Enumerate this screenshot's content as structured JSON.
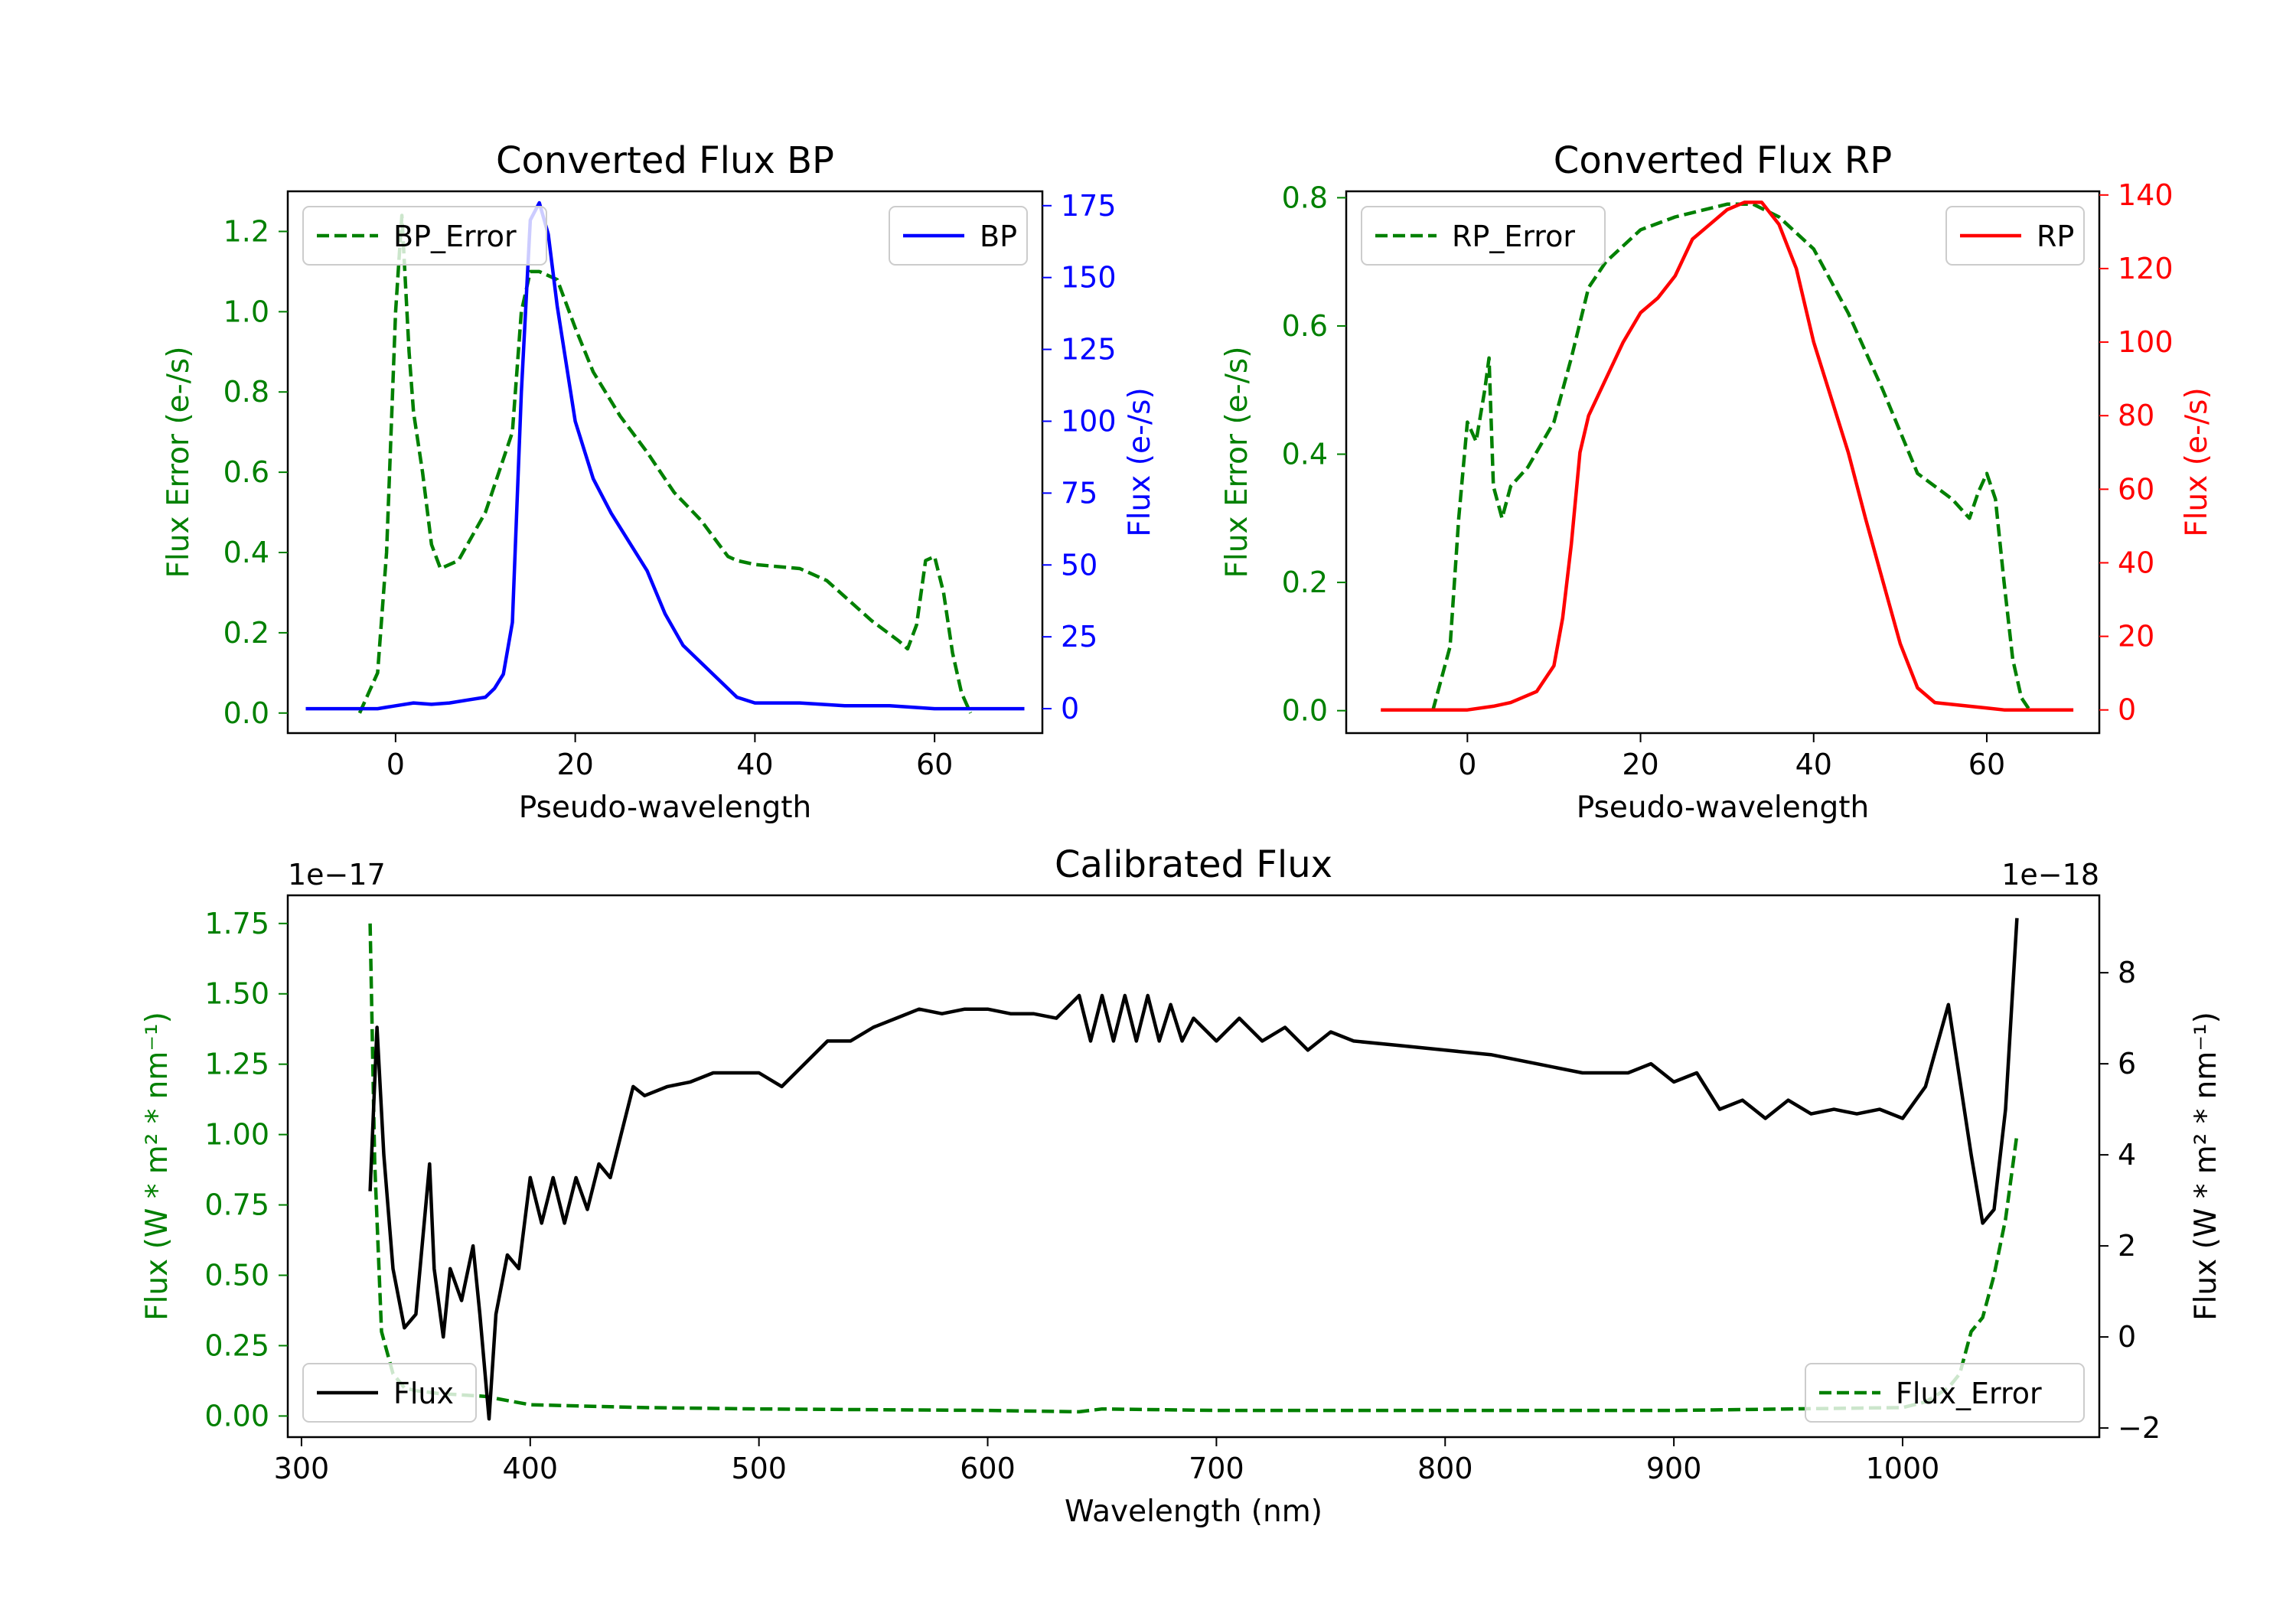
{
  "chart_data": [
    {
      "id": "bp",
      "type": "line",
      "title": "Converted Flux BP",
      "xlabel": "Pseudo-wavelength",
      "ylabel_left": "Flux Error (e-/s)",
      "ylabel_right": "Flux (e-/s)",
      "xlim": [
        -12,
        72
      ],
      "ylim_left": [
        -0.05,
        1.3
      ],
      "ylim_right": [
        -8.5,
        180
      ],
      "x_ticks": [
        0,
        20,
        40,
        60
      ],
      "y_ticks_left": [
        "0.0",
        "0.2",
        "0.4",
        "0.6",
        "0.8",
        "1.0",
        "1.2"
      ],
      "y_ticks_right": [
        "0",
        "25",
        "50",
        "75",
        "100",
        "125",
        "150",
        "175"
      ],
      "series": [
        {
          "name": "BP_Error",
          "axis": "left",
          "color": "#008000",
          "style": "dashed",
          "x": [
            -4,
            -2,
            -1,
            0,
            0.7,
            1.5,
            2,
            3,
            4,
            5,
            7,
            10,
            13,
            14,
            15,
            16,
            18,
            20,
            22,
            25,
            28,
            31,
            34,
            36,
            37,
            38,
            40,
            45,
            48,
            50,
            53,
            56,
            57,
            58,
            59,
            60,
            61,
            62,
            63,
            64
          ],
          "y": [
            0.0,
            0.1,
            0.4,
            1.0,
            1.24,
            0.9,
            0.75,
            0.6,
            0.42,
            0.36,
            0.38,
            0.5,
            0.7,
            1.0,
            1.1,
            1.1,
            1.08,
            0.96,
            0.85,
            0.74,
            0.65,
            0.55,
            0.48,
            0.42,
            0.39,
            0.38,
            0.37,
            0.36,
            0.33,
            0.29,
            0.23,
            0.18,
            0.16,
            0.22,
            0.38,
            0.39,
            0.3,
            0.15,
            0.05,
            0.0
          ]
        },
        {
          "name": "BP",
          "axis": "right",
          "color": "#0000ff",
          "style": "solid",
          "x": [
            -10,
            -5,
            -2,
            0,
            2,
            4,
            6,
            8,
            10,
            11,
            12,
            13,
            14,
            15,
            16,
            17,
            18,
            20,
            22,
            24,
            26,
            28,
            30,
            32,
            34,
            36,
            38,
            40,
            45,
            50,
            55,
            60,
            65,
            70
          ],
          "y": [
            0,
            0,
            0,
            1,
            2,
            1.5,
            2,
            3,
            4,
            7,
            12,
            30,
            110,
            170,
            176,
            165,
            140,
            100,
            80,
            68,
            58,
            48,
            33,
            22,
            16,
            10,
            4,
            2,
            2,
            1,
            1,
            0,
            0,
            0
          ]
        }
      ],
      "legend": [
        {
          "label": "BP_Error",
          "location": "upper-left"
        },
        {
          "label": "BP",
          "location": "upper-right"
        }
      ]
    },
    {
      "id": "rp",
      "type": "line",
      "title": "Converted Flux RP",
      "xlabel": "Pseudo-wavelength",
      "ylabel_left": "Flux Error (e-/s)",
      "ylabel_right": "Flux (e-/s)",
      "xlim": [
        -14,
        73
      ],
      "ylim_left": [
        -0.035,
        0.81
      ],
      "ylim_right": [
        -6.3,
        141
      ],
      "x_ticks": [
        0,
        20,
        40,
        60
      ],
      "y_ticks_left": [
        "0.0",
        "0.2",
        "0.4",
        "0.6",
        "0.8"
      ],
      "y_ticks_right": [
        "0",
        "20",
        "40",
        "60",
        "80",
        "100",
        "120",
        "140"
      ],
      "series": [
        {
          "name": "RP_Error",
          "axis": "left",
          "color": "#008000",
          "style": "dashed",
          "x": [
            -4,
            -2,
            -1,
            0,
            1,
            2,
            2.5,
            3,
            4,
            5,
            7,
            10,
            12,
            14,
            16,
            20,
            24,
            27,
            30,
            33,
            36,
            40,
            44,
            48,
            52,
            55,
            56,
            58,
            59,
            60,
            61,
            62,
            63,
            64,
            65
          ],
          "y": [
            0.0,
            0.1,
            0.3,
            0.45,
            0.42,
            0.5,
            0.55,
            0.35,
            0.3,
            0.35,
            0.38,
            0.45,
            0.55,
            0.66,
            0.7,
            0.75,
            0.77,
            0.78,
            0.79,
            0.79,
            0.77,
            0.72,
            0.62,
            0.5,
            0.37,
            0.34,
            0.33,
            0.3,
            0.34,
            0.37,
            0.33,
            0.2,
            0.08,
            0.02,
            0.0
          ]
        },
        {
          "name": "RP",
          "axis": "right",
          "color": "#ff0000",
          "style": "solid",
          "x": [
            -10,
            -5,
            0,
            3,
            5,
            8,
            10,
            11,
            12,
            13,
            14,
            16,
            18,
            20,
            22,
            24,
            26,
            28,
            30,
            32,
            34,
            36,
            38,
            40,
            42,
            44,
            46,
            48,
            50,
            52,
            54,
            56,
            58,
            60,
            62,
            65,
            70
          ],
          "y": [
            0,
            0,
            0,
            1,
            2,
            5,
            12,
            25,
            45,
            70,
            80,
            90,
            100,
            108,
            112,
            118,
            128,
            132,
            136,
            138,
            138,
            132,
            120,
            100,
            85,
            70,
            52,
            35,
            18,
            6,
            2,
            1.5,
            1,
            0.5,
            0,
            0,
            0
          ]
        }
      ],
      "legend": [
        {
          "label": "RP_Error",
          "location": "upper-left"
        },
        {
          "label": "RP",
          "location": "upper-right"
        }
      ]
    },
    {
      "id": "cal",
      "type": "line",
      "title": "Calibrated Flux",
      "xlabel": "Wavelength (nm)",
      "ylabel_left": "Flux (W * m² * nm⁻¹)",
      "ylabel_right": "Flux (W * m² * nm⁻¹)",
      "offset_left": "1e−17",
      "offset_right": "1e−18",
      "xlim": [
        294,
        1086
      ],
      "ylim_left": [
        -0.075,
        1.85
      ],
      "ylim_right": [
        -2.2,
        9.7
      ],
      "x_ticks": [
        300,
        400,
        500,
        600,
        700,
        800,
        900,
        1000
      ],
      "y_ticks_left": [
        "0.00",
        "0.25",
        "0.50",
        "0.75",
        "1.00",
        "1.25",
        "1.50",
        "1.75"
      ],
      "y_ticks_right": [
        "−2",
        "0",
        "2",
        "4",
        "6",
        "8"
      ],
      "series": [
        {
          "name": "Flux_Error",
          "axis": "left",
          "color": "#008000",
          "style": "dashed",
          "x": [
            330,
            332,
            335,
            340,
            345,
            350,
            360,
            380,
            400,
            450,
            500,
            600,
            640,
            650,
            700,
            800,
            900,
            950,
            1000,
            1010,
            1020,
            1025,
            1030,
            1035,
            1040,
            1045,
            1050
          ],
          "y": [
            1.75,
            0.9,
            0.3,
            0.15,
            0.1,
            0.09,
            0.08,
            0.07,
            0.04,
            0.03,
            0.025,
            0.02,
            0.015,
            0.025,
            0.02,
            0.02,
            0.02,
            0.025,
            0.03,
            0.05,
            0.1,
            0.15,
            0.3,
            0.35,
            0.5,
            0.7,
            1.0
          ]
        },
        {
          "name": "Flux",
          "axis": "right",
          "color": "#000000",
          "style": "solid",
          "x": [
            330,
            333,
            336,
            340,
            345,
            350,
            356,
            358,
            362,
            365,
            370,
            375,
            378,
            382,
            385,
            390,
            395,
            400,
            405,
            410,
            415,
            420,
            425,
            430,
            435,
            440,
            445,
            450,
            460,
            470,
            480,
            490,
            500,
            510,
            520,
            530,
            540,
            550,
            560,
            570,
            580,
            590,
            600,
            610,
            620,
            630,
            640,
            645,
            650,
            655,
            660,
            665,
            670,
            675,
            680,
            685,
            690,
            700,
            710,
            720,
            730,
            740,
            750,
            760,
            780,
            800,
            820,
            840,
            860,
            880,
            890,
            900,
            910,
            920,
            930,
            940,
            950,
            960,
            970,
            980,
            990,
            1000,
            1010,
            1020,
            1030,
            1035,
            1040,
            1045,
            1050
          ],
          "y": [
            3.2,
            6.8,
            4.0,
            1.5,
            0.2,
            0.5,
            3.8,
            1.5,
            0.0,
            1.5,
            0.8,
            2.0,
            0.5,
            -1.8,
            0.5,
            1.8,
            1.5,
            3.5,
            2.5,
            3.5,
            2.5,
            3.5,
            2.8,
            3.8,
            3.5,
            4.5,
            5.5,
            5.3,
            5.5,
            5.6,
            5.8,
            5.8,
            5.8,
            5.5,
            6.0,
            6.5,
            6.5,
            6.8,
            7.0,
            7.2,
            7.1,
            7.2,
            7.2,
            7.1,
            7.1,
            7.0,
            7.5,
            6.5,
            7.5,
            6.5,
            7.5,
            6.5,
            7.5,
            6.5,
            7.3,
            6.5,
            7.0,
            6.5,
            7.0,
            6.5,
            6.8,
            6.3,
            6.7,
            6.5,
            6.4,
            6.3,
            6.2,
            6.0,
            5.8,
            5.8,
            6.0,
            5.6,
            5.8,
            5.0,
            5.2,
            4.8,
            5.2,
            4.9,
            5.0,
            4.9,
            5.0,
            4.8,
            5.5,
            7.3,
            4.0,
            2.5,
            2.8,
            5.0,
            9.2
          ]
        }
      ],
      "legend": [
        {
          "label": "Flux",
          "location": "lower-left"
        },
        {
          "label": "Flux_Error",
          "location": "lower-right"
        }
      ]
    }
  ]
}
